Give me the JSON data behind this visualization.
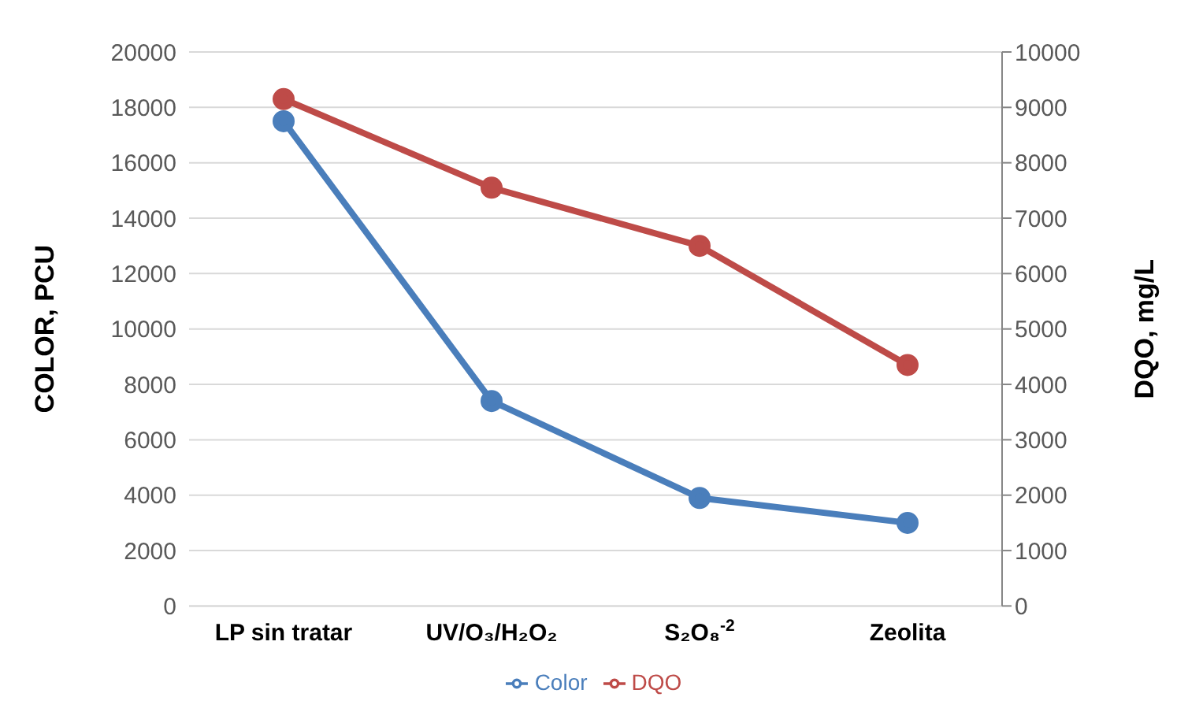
{
  "chart_data": {
    "type": "line",
    "categories": [
      "LP sin tratar",
      "UV/O₃/H₂O₂",
      "S₂O₈$^{-2}$",
      "Zeolita"
    ],
    "series": [
      {
        "name": "Color",
        "color": "#4a7ebb",
        "values": [
          17500,
          7400,
          3900,
          3000
        ]
      },
      {
        "name": "DQO",
        "color": "#be4b48",
        "values": [
          9150,
          7550,
          6500,
          4350
        ],
        "axis": "y2"
      }
    ],
    "ylabel": "COLOR, PCU",
    "y2label": "DQO, mg/L",
    "ylim": [
      0,
      20000
    ],
    "yticks": [
      0,
      2000,
      4000,
      6000,
      8000,
      10000,
      12000,
      14000,
      16000,
      18000,
      20000
    ],
    "y2lim": [
      0,
      10000
    ],
    "y2ticks": [
      0,
      1000,
      2000,
      3000,
      4000,
      5000,
      6000,
      7000,
      8000,
      9000,
      10000
    ],
    "grid": "y",
    "legend": "bottom",
    "marker": "circle",
    "line_style": "solid"
  }
}
